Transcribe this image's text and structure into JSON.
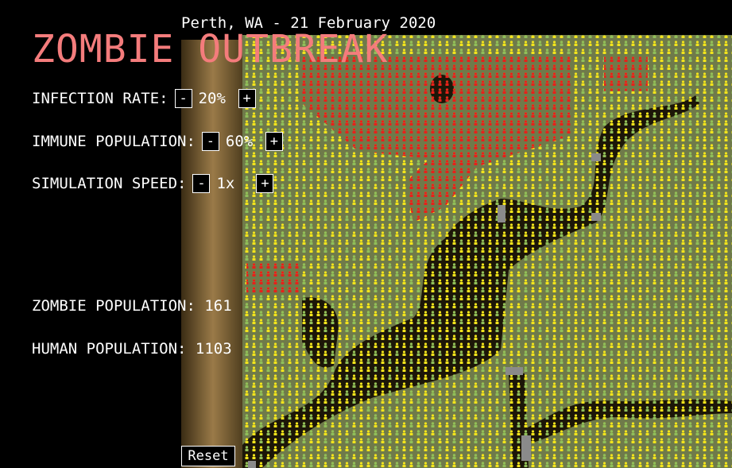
{
  "header": {
    "title": "Perth, WA - 21 February 2020",
    "heading": "ZOMBIE OUTBREAK"
  },
  "controls": [
    {
      "label": "INFECTION RATE:",
      "decrease": "-",
      "value": "20%",
      "increase": "+"
    },
    {
      "label": "IMMUNE POPULATION:",
      "decrease": "-",
      "value": "60%",
      "increase": "+"
    },
    {
      "label": "SIMULATION SPEED:",
      "decrease": "-",
      "value": "1x",
      "increase": "+"
    }
  ],
  "stats": [
    {
      "label": "ZOMBIE POPULATION:",
      "value": 161
    },
    {
      "label": "HUMAN POPULATION:",
      "value": 1103
    }
  ],
  "reset": "Reset"
}
